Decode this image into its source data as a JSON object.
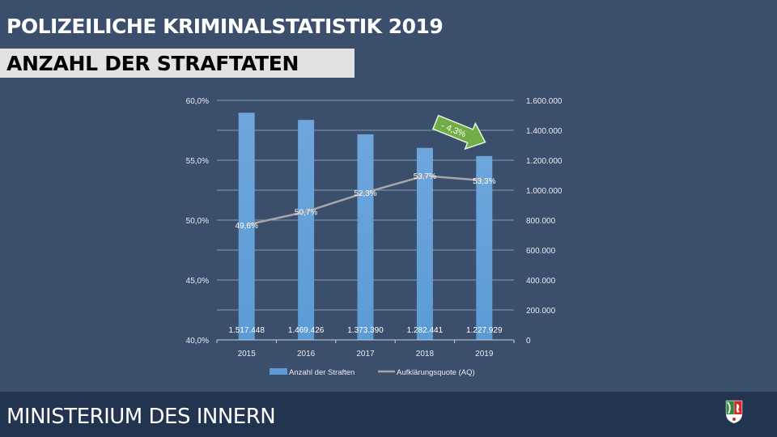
{
  "header": {
    "title": "POLIZEILICHE KRIMINALSTATISTIK 2019",
    "subtitle": "ANZAHL DER STRAFTATEN"
  },
  "footer": {
    "text": "MINISTERIUM DES INNERN",
    "logo": "nrw-coat-of-arms-icon"
  },
  "colors": {
    "background": "#3b4e6b",
    "footer": "#22344f",
    "bar": "#5b9bd5",
    "line": "#a6a6a6",
    "arrow": "#70ad47",
    "subtitle_bar": "#e2e2e2"
  },
  "chart_data": {
    "type": "bar",
    "categories": [
      "2015",
      "2016",
      "2017",
      "2018",
      "2019"
    ],
    "series": [
      {
        "name": "Anzahl der Straften",
        "type": "bar",
        "axis": "right",
        "values": [
          1517448,
          1469426,
          1373390,
          1282441,
          1227929
        ],
        "labels": [
          "1.517.448",
          "1.469.426",
          "1.373.390",
          "1.282.441",
          "1.227.929"
        ]
      },
      {
        "name": "Aufklärungsquote (AQ)",
        "type": "line",
        "axis": "left",
        "values": [
          49.6,
          50.7,
          52.3,
          53.7,
          53.3
        ],
        "labels": [
          "49,6%",
          "50,7%",
          "52,3%",
          "53,7%",
          "53,3%"
        ]
      }
    ],
    "left_axis": {
      "range": [
        40,
        60
      ],
      "ticks": [
        "40,0%",
        "45,0%",
        "50,0%",
        "55,0%",
        "60,0%"
      ],
      "tick_values": [
        40,
        45,
        50,
        55,
        60
      ]
    },
    "right_axis": {
      "range": [
        0,
        1600000
      ],
      "ticks": [
        "0",
        "200.000",
        "400.000",
        "600.000",
        "800.000",
        "1.000.000",
        "1.200.000",
        "1.400.000",
        "1.600.000"
      ],
      "tick_values": [
        0,
        200000,
        400000,
        600000,
        800000,
        1000000,
        1200000,
        1400000,
        1600000
      ]
    },
    "grid": true,
    "legend_position": "bottom",
    "annotation": {
      "text": "- 4,3%",
      "direction": "down-right",
      "between": [
        "2018",
        "2019"
      ]
    }
  }
}
